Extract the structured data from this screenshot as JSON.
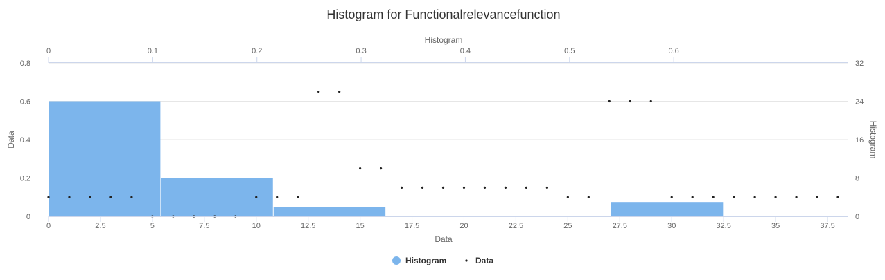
{
  "chart_data": {
    "type": "bar+scatter",
    "title": "Histogram for Functionalrelevancefunction",
    "xlabel": "Data",
    "ylabel": "Data",
    "secondary_xlabel": "Histogram",
    "secondary_ylabel": "Histogram",
    "x_ticks": [
      "0",
      "2.5",
      "5",
      "7.5",
      "10",
      "12.5",
      "15",
      "17.5",
      "20",
      "22.5",
      "25",
      "27.5",
      "30",
      "32.5",
      "35",
      "37.5"
    ],
    "y_ticks": [
      "0",
      "0.2",
      "0.4",
      "0.6",
      "0.8"
    ],
    "top_x_ticks": [
      "0",
      "0.1",
      "0.2",
      "0.3",
      "0.4",
      "0.5",
      "0.6"
    ],
    "right_y_ticks": [
      "0",
      "8",
      "16",
      "24",
      "32"
    ],
    "xlim": [
      0,
      38.5
    ],
    "ylim": [
      0,
      0.8
    ],
    "top_xlim": [
      0,
      0.7675
    ],
    "right_ylim": [
      0,
      32
    ],
    "grid": true,
    "legend_position": "bottom",
    "series": [
      {
        "name": "Histogram",
        "kind": "bar",
        "color": "#7cb5ec",
        "bins": [
          {
            "x0": 0.0,
            "x1": 0.108,
            "value": 0.6
          },
          {
            "x0": 0.108,
            "x1": 0.216,
            "value": 0.2
          },
          {
            "x0": 0.216,
            "x1": 0.324,
            "value": 0.05
          },
          {
            "x0": 0.324,
            "x1": 0.432,
            "value": 0
          },
          {
            "x0": 0.432,
            "x1": 0.54,
            "value": 0
          },
          {
            "x0": 0.54,
            "x1": 0.648,
            "value": 0.075
          }
        ]
      },
      {
        "name": "Data",
        "kind": "scatter",
        "color": "#222222",
        "x": [
          0,
          1,
          2,
          3,
          4,
          5,
          6,
          7,
          8,
          9,
          10,
          11,
          12,
          13,
          14,
          15,
          16,
          17,
          18,
          19,
          20,
          21,
          22,
          23,
          24,
          25,
          26,
          27,
          28,
          29,
          30,
          31,
          32,
          33,
          34,
          35,
          36,
          37,
          38
        ],
        "y": [
          0.1,
          0.1,
          0.1,
          0.1,
          0.1,
          0,
          0,
          0,
          0,
          0,
          0.1,
          0.1,
          0.1,
          0.65,
          0.65,
          0.25,
          0.25,
          0.15,
          0.15,
          0.15,
          0.15,
          0.15,
          0.15,
          0.15,
          0.15,
          0.1,
          0.1,
          0.6,
          0.6,
          0.6,
          0.1,
          0.1,
          0.1,
          0.1,
          0.1,
          0.1,
          0.1,
          0.1,
          0.1
        ]
      }
    ]
  }
}
